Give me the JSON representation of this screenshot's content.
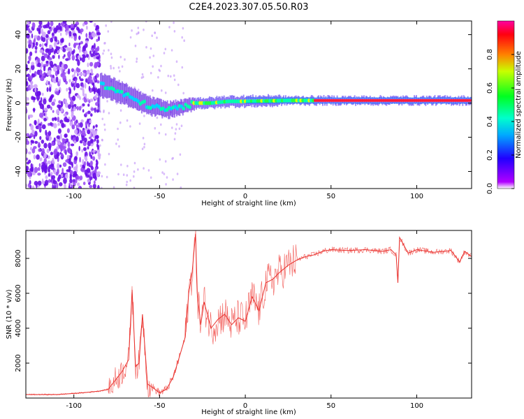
{
  "title": "C2E4.2023.307.05.50.R03",
  "colors": {
    "snr_line": "#e8302c",
    "spectrogram_noise": "#7a1cf0",
    "spectrogram_peak": "#ff1a3c",
    "axes": "#000000"
  },
  "chart_data": [
    {
      "type": "heatmap",
      "id": "spectrogram",
      "xlabel": "Height of straight line (km)",
      "ylabel": "Frequency (Hz)",
      "xlim": [
        -128,
        132
      ],
      "ylim": [
        -50,
        48
      ],
      "x_ticks": [
        -100,
        -50,
        0,
        50,
        100
      ],
      "y_ticks": [
        -40,
        -20,
        0,
        20,
        40
      ],
      "colorbar": {
        "label": "Normalized spectral amplitude",
        "range": [
          0,
          1
        ],
        "ticks": [
          "0.0",
          "0.2",
          "0.4",
          "0.6",
          "0.8"
        ],
        "colormap": "gist_rainbow_r (purple→blue→cyan→green→yellow→red)"
      },
      "frequency_trace": [
        {
          "x": -85,
          "y": 11
        },
        {
          "x": -80,
          "y": 9
        },
        {
          "x": -75,
          "y": 7
        },
        {
          "x": -70,
          "y": 5
        },
        {
          "x": -65,
          "y": 2
        },
        {
          "x": -60,
          "y": 0
        },
        {
          "x": -55,
          "y": -2
        },
        {
          "x": -50,
          "y": -3
        },
        {
          "x": -45,
          "y": -4
        },
        {
          "x": -40,
          "y": -3
        },
        {
          "x": -35,
          "y": -2
        },
        {
          "x": -30,
          "y": 0
        },
        {
          "x": -20,
          "y": 0
        },
        {
          "x": -10,
          "y": 1
        },
        {
          "x": 0,
          "y": 1
        },
        {
          "x": 25,
          "y": 1.5
        },
        {
          "x": 50,
          "y": 1.5
        },
        {
          "x": 100,
          "y": 1.5
        },
        {
          "x": 132,
          "y": 1.5
        }
      ],
      "noise_region": [
        -128,
        -85
      ]
    },
    {
      "type": "line",
      "id": "snr",
      "xlabel": "Height of straight line (km)",
      "ylabel": "SNR (10 * v/v)",
      "xlim": [
        -128,
        132
      ],
      "ylim": [
        0,
        9600
      ],
      "x_ticks": [
        -100,
        -50,
        0,
        50,
        100
      ],
      "y_ticks": [
        2000,
        4000,
        6000,
        8000
      ],
      "x": [
        -128,
        -110,
        -95,
        -85,
        -80,
        -76,
        -72,
        -68,
        -66,
        -64,
        -62,
        -60,
        -57,
        -54,
        -50,
        -46,
        -42,
        -38,
        -35,
        -33,
        -31,
        -29,
        -28,
        -26,
        -24,
        -20,
        -16,
        -12,
        -8,
        -4,
        0,
        4,
        8,
        12,
        16,
        20,
        25,
        30,
        35,
        40,
        45,
        50,
        60,
        70,
        80,
        85,
        88,
        89,
        90,
        95,
        100,
        110,
        120,
        125,
        128,
        132
      ],
      "values": [
        200,
        200,
        300,
        400,
        500,
        1000,
        1500,
        2200,
        6200,
        1800,
        2000,
        4800,
        800,
        600,
        300,
        500,
        1200,
        2500,
        3500,
        6000,
        7200,
        9400,
        6000,
        4200,
        5500,
        4000,
        4500,
        4800,
        4200,
        4600,
        4400,
        5800,
        5000,
        6600,
        6800,
        7200,
        7600,
        7900,
        8100,
        8200,
        8400,
        8500,
        8450,
        8500,
        8400,
        8500,
        8200,
        6600,
        9200,
        8300,
        8500,
        8350,
        8450,
        7800,
        8400,
        8100
      ]
    }
  ]
}
